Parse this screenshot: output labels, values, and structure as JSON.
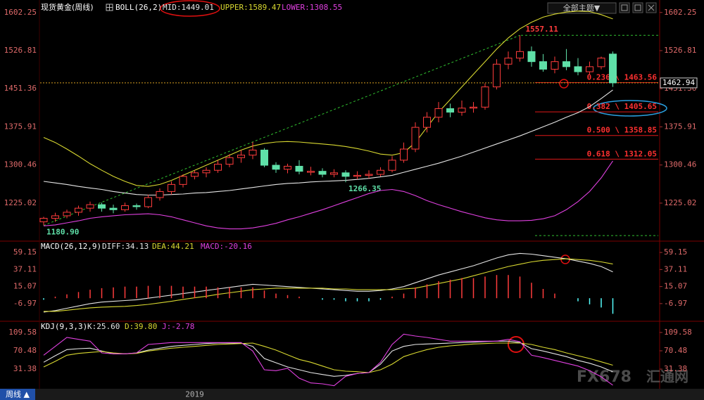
{
  "toolbar": {
    "theme_button": "全部主题▼"
  },
  "footer": {
    "tab": "周线 ▲"
  },
  "watermark": [
    "FX678",
    "汇通网"
  ],
  "chart_data": [
    {
      "type": "candlestick",
      "title": "现货黄金(周线)",
      "indicator": "BOLL(26,2)",
      "up_color": "#ff3c3c",
      "down_color": "#5fe0a8",
      "ylim": [
        1154,
        1620
      ],
      "yticks": [
        1602.25,
        1526.81,
        1451.36,
        1375.91,
        1300.46,
        1225.02
      ],
      "categories": [
        null,
        null,
        null,
        null,
        null,
        null,
        null,
        null,
        null,
        null,
        null,
        null,
        null,
        "2019",
        null,
        null,
        null,
        null,
        null,
        null,
        null,
        null,
        null,
        null,
        null,
        null,
        null,
        null,
        null,
        null,
        null,
        null,
        null,
        null,
        null,
        null,
        null,
        null,
        null,
        null,
        null,
        null,
        null,
        null,
        null,
        null,
        null,
        null,
        null,
        null
      ],
      "open": [
        1188,
        1195,
        1200,
        1207,
        1215,
        1222,
        1215,
        1212,
        1220,
        1218,
        1236,
        1248,
        1262,
        1278,
        1285,
        1290,
        1302,
        1315,
        1320,
        1330,
        1300,
        1292,
        1298,
        1286,
        1288,
        1282,
        1285,
        1278,
        1280,
        1282,
        1290,
        1310,
        1332,
        1375,
        1395,
        1412,
        1405,
        1413,
        1415,
        1455,
        1500,
        1512,
        1525,
        1505,
        1490,
        1505,
        1495,
        1485,
        1495,
        1520
      ],
      "high": [
        1198,
        1206,
        1212,
        1220,
        1228,
        1226,
        1222,
        1226,
        1224,
        1242,
        1254,
        1268,
        1282,
        1290,
        1296,
        1310,
        1322,
        1330,
        1346,
        1334,
        1306,
        1303,
        1310,
        1297,
        1294,
        1292,
        1290,
        1288,
        1290,
        1296,
        1318,
        1345,
        1385,
        1405,
        1425,
        1422,
        1428,
        1425,
        1462,
        1510,
        1525,
        1557.11,
        1535,
        1520,
        1515,
        1530,
        1512,
        1505,
        1515,
        1525
      ],
      "low": [
        1180.9,
        1188,
        1195,
        1200,
        1208,
        1208,
        1205,
        1208,
        1212,
        1215,
        1230,
        1242,
        1256,
        1272,
        1276,
        1285,
        1296,
        1305,
        1312,
        1296,
        1285,
        1284,
        1282,
        1280,
        1276,
        1276,
        1266.35,
        1272,
        1274,
        1278,
        1286,
        1305,
        1326,
        1365,
        1385,
        1395,
        1398,
        1404,
        1410,
        1450,
        1490,
        1505,
        1495,
        1485,
        1482,
        1488,
        1478,
        1480,
        1490,
        1455
      ],
      "close": [
        1195,
        1200,
        1207,
        1215,
        1222,
        1215,
        1212,
        1220,
        1218,
        1236,
        1248,
        1262,
        1278,
        1285,
        1290,
        1302,
        1315,
        1320,
        1330,
        1300,
        1292,
        1298,
        1288,
        1288,
        1282,
        1285,
        1278,
        1280,
        1282,
        1290,
        1310,
        1332,
        1375,
        1395,
        1412,
        1405,
        1413,
        1415,
        1455,
        1500,
        1512,
        1525,
        1505,
        1490,
        1505,
        1495,
        1485,
        1495,
        1512,
        1462.94
      ],
      "series": [
        {
          "name": "MID:1449.01",
          "color": "#e6e6e6",
          "values": [
            1268,
            1265,
            1262,
            1258,
            1255,
            1252,
            1248,
            1245,
            1242,
            1241,
            1241,
            1242,
            1243,
            1245,
            1246,
            1248,
            1250,
            1253,
            1256,
            1259,
            1262,
            1264,
            1265,
            1267,
            1268,
            1269,
            1270,
            1272,
            1274,
            1277,
            1280,
            1286,
            1292,
            1298,
            1304,
            1311,
            1318,
            1326,
            1334,
            1342,
            1350,
            1358,
            1367,
            1376,
            1385,
            1395,
            1404,
            1416,
            1432,
            1449.01
          ]
        },
        {
          "name": "UPPER:1589.47",
          "color": "#d8d830",
          "values": [
            1355,
            1345,
            1332,
            1318,
            1303,
            1290,
            1278,
            1268,
            1260,
            1258,
            1262,
            1270,
            1280,
            1290,
            1300,
            1310,
            1320,
            1330,
            1338,
            1343,
            1346,
            1347,
            1346,
            1344,
            1342,
            1340,
            1337,
            1333,
            1328,
            1322,
            1320,
            1325,
            1345,
            1375,
            1405,
            1430,
            1455,
            1480,
            1505,
            1530,
            1552,
            1570,
            1583,
            1593,
            1599,
            1603,
            1605,
            1604,
            1598,
            1589.47
          ]
        },
        {
          "name": "LOWER:1308.55",
          "color": "#e040e0",
          "values": [
            1180,
            1182,
            1186,
            1190,
            1195,
            1198,
            1200,
            1202,
            1203,
            1204,
            1202,
            1198,
            1192,
            1186,
            1180,
            1176,
            1174,
            1174,
            1176,
            1180,
            1185,
            1192,
            1198,
            1205,
            1212,
            1220,
            1228,
            1236,
            1244,
            1250,
            1252,
            1248,
            1240,
            1230,
            1222,
            1215,
            1208,
            1202,
            1196,
            1192,
            1190,
            1190,
            1191,
            1194,
            1200,
            1212,
            1228,
            1248,
            1275,
            1308.55
          ]
        }
      ],
      "extremes": [
        {
          "value": 1180.9,
          "label": "1180.90"
        },
        1266.35,
        1557.11
      ],
      "fib_range": [
        1557.11,
        1160.71
      ],
      "fib_levels": [
        {
          "value": 1463.56,
          "label": "0.236 \\ 1463.56"
        },
        {
          "value": 1405.65,
          "label": "0.382 \\ 1405.65"
        },
        {
          "value": 1358.85,
          "label": "0.500 \\ 1358.85"
        },
        {
          "value": 1312.05,
          "label": "0.618 \\ 1312.05"
        }
      ]
    },
    {
      "type": "macd",
      "title": "MACD(26,12,9)",
      "ylim": [
        -28,
        72
      ],
      "yticks": [
        59.15,
        37.11,
        15.07,
        -6.97
      ],
      "series": [
        {
          "name": "DIFF:34.13",
          "color": "#e6e6e6",
          "values": [
            -18,
            -16,
            -13,
            -10,
            -7,
            -5,
            -4,
            -3,
            -2,
            0,
            2,
            4,
            6,
            8,
            10,
            12,
            14,
            16,
            18,
            17,
            16,
            15,
            14,
            13,
            12,
            11,
            10,
            9,
            9,
            10,
            12,
            15,
            20,
            25,
            30,
            34,
            38,
            42,
            47,
            52,
            56,
            58,
            57,
            55,
            53,
            51,
            48,
            45,
            41,
            34.13
          ]
        },
        {
          "name": "DEA:44.21",
          "color": "#d8d830",
          "values": [
            -17,
            -17,
            -15.5,
            -14,
            -12.5,
            -11.5,
            -11,
            -10.5,
            -9.5,
            -8,
            -6,
            -4,
            -1.5,
            0.5,
            2.5,
            5,
            7,
            9,
            11,
            12,
            13,
            13,
            13,
            13,
            13,
            12,
            12,
            11,
            11,
            11,
            11,
            12,
            13,
            16,
            19,
            22,
            25,
            29,
            33,
            37,
            41,
            44,
            47,
            49,
            50,
            51,
            50,
            49,
            47,
            44.21
          ]
        },
        {
          "name": "MACD:-20.16",
          "color": "#e040e0",
          "style": "bar",
          "up_color": "#ff3c3c",
          "down_color": "#54fcfc",
          "values": [
            -2,
            2,
            5,
            8,
            11,
            13,
            14,
            15,
            15,
            16,
            16,
            16,
            15,
            15,
            15,
            14,
            14,
            14,
            14,
            10,
            6,
            4,
            2,
            0,
            -2,
            -2,
            -4,
            -4,
            -4,
            -2,
            2,
            6,
            14,
            18,
            22,
            24,
            26,
            26,
            28,
            30,
            30,
            28,
            20,
            12,
            6,
            0,
            -4,
            -8,
            -12,
            -20.16
          ]
        }
      ]
    },
    {
      "type": "line",
      "title": "KDJ(9,3,3)",
      "ylim": [
        -6,
        126
      ],
      "yticks": [
        109.58,
        70.48,
        31.38
      ],
      "series": [
        {
          "name": "K:25.60",
          "color": "#e6e6e6",
          "values": [
            46,
            60,
            73,
            75,
            76,
            70,
            64,
            64,
            66,
            72,
            76,
            80,
            82,
            84,
            86,
            87,
            87,
            87,
            80,
            54,
            45,
            36,
            30,
            24,
            20,
            16,
            18,
            22,
            24,
            42,
            70,
            80,
            84,
            85,
            86,
            87,
            88,
            89,
            90,
            91,
            91,
            88,
            75,
            70,
            64,
            58,
            50,
            44,
            36,
            25.6
          ]
        },
        {
          "name": "D:39.80",
          "color": "#d8d830",
          "values": [
            36,
            48,
            61,
            65,
            67,
            69,
            66,
            64,
            65,
            70,
            73,
            76,
            78,
            80,
            82,
            84,
            85,
            86,
            87,
            80,
            72,
            62,
            52,
            46,
            38,
            30,
            27,
            26,
            24,
            30,
            42,
            58,
            66,
            73,
            78,
            81,
            83,
            85,
            86,
            87,
            87,
            87,
            84,
            78,
            73,
            66,
            60,
            54,
            47,
            39.8
          ]
        },
        {
          "name": "J:-2.78",
          "color": "#e040e0",
          "values": [
            61,
            80,
            99,
            95,
            91,
            66,
            64,
            64,
            66,
            84,
            86,
            88,
            88,
            88,
            88,
            88,
            88,
            88,
            70,
            30,
            28,
            33,
            12,
            2,
            0,
            -4,
            16,
            22,
            24,
            46,
            84,
            106,
            102,
            99,
            95,
            91,
            91,
            91,
            91,
            91,
            95,
            90,
            61,
            56,
            50,
            44,
            38,
            28,
            15,
            -2.78
          ]
        }
      ]
    }
  ]
}
